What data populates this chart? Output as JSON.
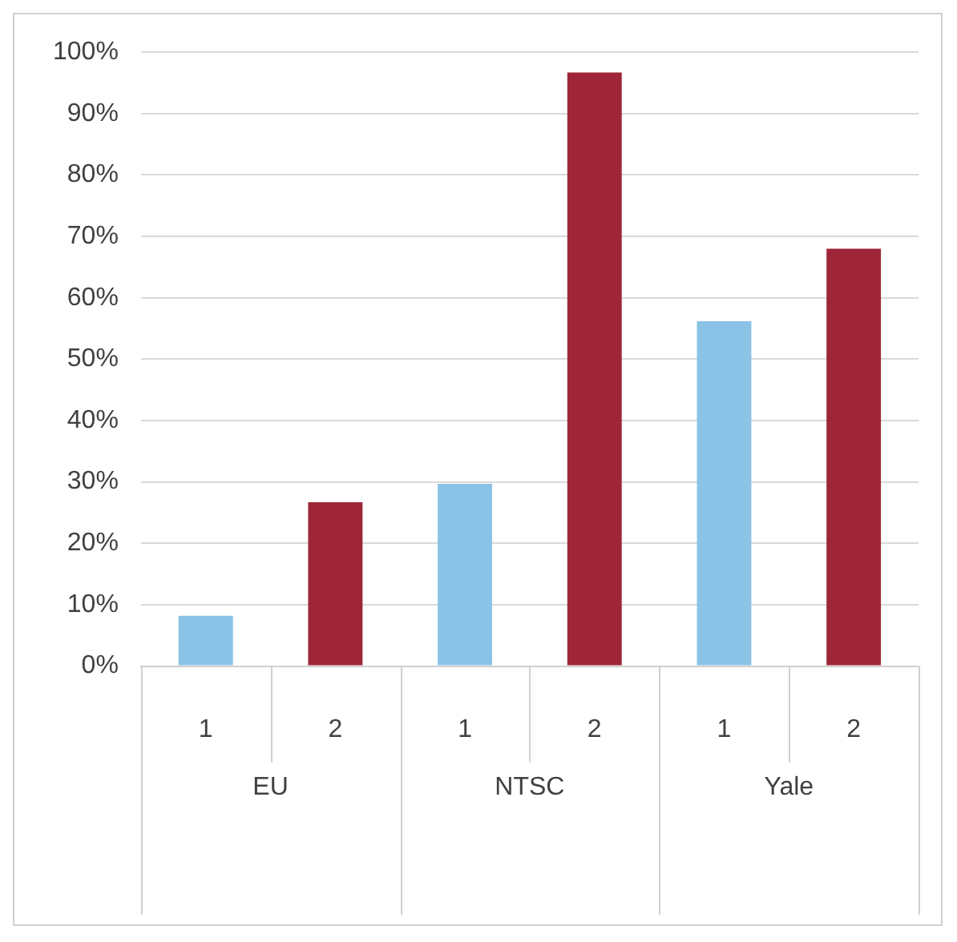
{
  "chart_data": {
    "type": "bar",
    "categories": [
      "EU",
      "NTSC",
      "Yale"
    ],
    "series": [
      {
        "name": "1",
        "color": "#8ac3e6",
        "values": [
          8.2,
          29.7,
          56.2
        ]
      },
      {
        "name": "2",
        "color": "#9e2638",
        "values": [
          26.7,
          96.7,
          68
        ]
      }
    ],
    "ylim": [
      0,
      100
    ],
    "yticks": [
      {
        "value": 0,
        "label": "0%"
      },
      {
        "value": 10,
        "label": "10%"
      },
      {
        "value": 20,
        "label": "20%"
      },
      {
        "value": 30,
        "label": "30%"
      },
      {
        "value": 40,
        "label": "40%"
      },
      {
        "value": 50,
        "label": "50%"
      },
      {
        "value": 60,
        "label": "60%"
      },
      {
        "value": 70,
        "label": "70%"
      },
      {
        "value": 80,
        "label": "80%"
      },
      {
        "value": 90,
        "label": "90%"
      },
      {
        "value": 100,
        "label": "100%"
      }
    ],
    "grid": "y",
    "legend": false
  }
}
